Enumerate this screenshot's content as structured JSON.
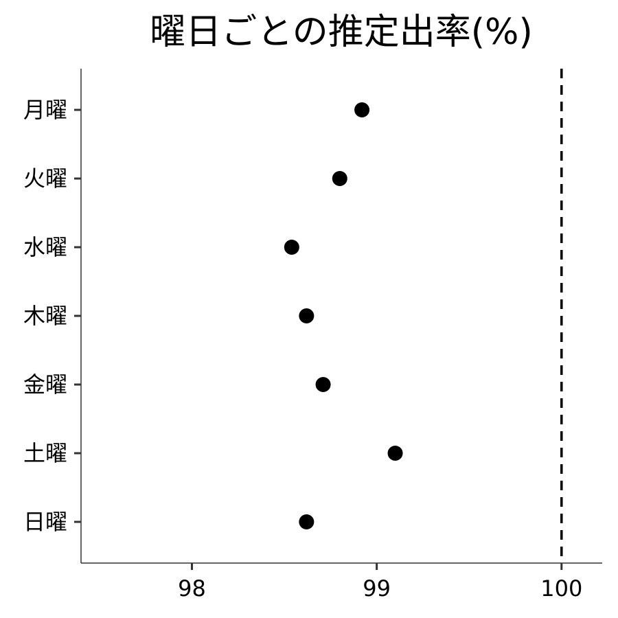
{
  "chart_data": {
    "type": "scatter",
    "title": "曜日ごとの推定出率(%)",
    "xlabel": "",
    "ylabel": "",
    "categories": [
      "月曜",
      "火曜",
      "水曜",
      "木曜",
      "金曜",
      "土曜",
      "日曜"
    ],
    "values": [
      98.92,
      98.8,
      98.54,
      98.62,
      98.71,
      99.1,
      98.62
    ],
    "xlim": [
      97.4,
      100.22
    ],
    "xticks": [
      98,
      99,
      100
    ],
    "xtick_labels": [
      "98",
      "99",
      "100"
    ],
    "reference_line": {
      "x": 100,
      "style": "dashed"
    },
    "grid": false,
    "legend": "none"
  }
}
